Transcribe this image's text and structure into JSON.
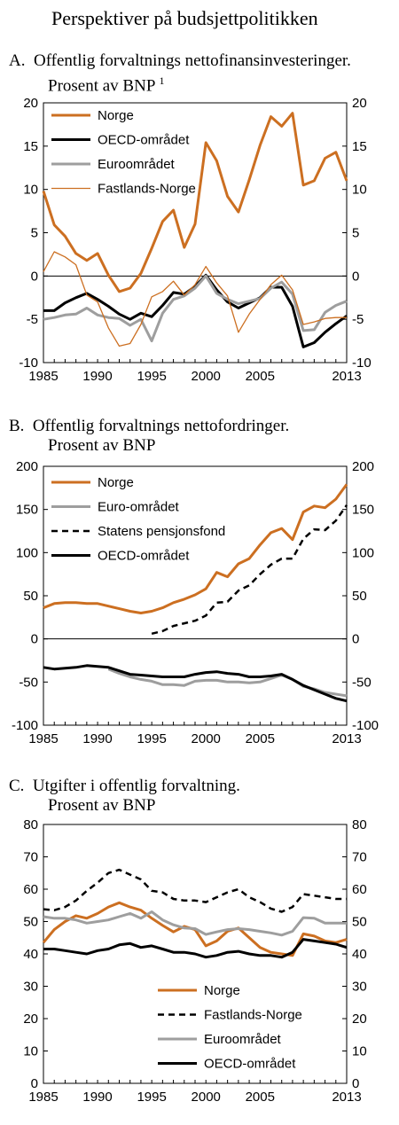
{
  "title": "Perspektiver på budsjettpolitikken",
  "colors": {
    "norge": "#cc6f21",
    "black": "#000000",
    "grey": "#9e9e9e"
  },
  "panel_titles": {
    "a_line1": "A. Offentlig forvaltnings nettofinansinvesteringer.",
    "a_line2": "Prosent av BNP",
    "a_sup": "1",
    "b_line1": "B. Offentlig forvaltnings nettofordringer.",
    "b_line2": "Prosent av BNP",
    "c_line1": "C. Utgifter i offentlig forvaltning.",
    "c_line2": "Prosent av BNP"
  },
  "chart_data": [
    {
      "type": "line",
      "xticks": [
        "1985",
        "1990",
        "1995",
        "2000",
        "2005",
        "2013"
      ],
      "ylim": [
        -10,
        20
      ],
      "yticks": [
        -10,
        -5,
        0,
        5,
        10,
        15,
        20
      ],
      "grid": false,
      "legend": "top-left",
      "series": [
        {
          "name": "Norge",
          "color": "#cc6f21",
          "width": 3,
          "dash": "",
          "x": [
            1985,
            1986,
            1987,
            1988,
            1989,
            1990,
            1991,
            1992,
            1993,
            1994,
            1995,
            1996,
            1997,
            1998,
            1999,
            2000,
            2001,
            2002,
            2003,
            2004,
            2005,
            2006,
            2007,
            2008,
            2009,
            2010,
            2011,
            2012,
            2013
          ],
          "values": [
            9.8,
            5.9,
            4.6,
            2.6,
            1.8,
            2.6,
            0.1,
            -1.8,
            -1.4,
            0.3,
            3.2,
            6.3,
            7.6,
            3.3,
            6.0,
            15.4,
            13.3,
            9.2,
            7.4,
            11.1,
            15.1,
            18.4,
            17.3,
            18.8,
            10.5,
            11.0,
            13.6,
            14.3,
            11.0
          ]
        },
        {
          "name": "OECD-området",
          "color": "#000000",
          "width": 3,
          "dash": "",
          "x": [
            1985,
            1986,
            1987,
            1988,
            1989,
            1990,
            1991,
            1992,
            1993,
            1994,
            1995,
            1996,
            1997,
            1998,
            1999,
            2000,
            2001,
            2002,
            2003,
            2004,
            2005,
            2006,
            2007,
            2008,
            2009,
            2010,
            2011,
            2012,
            2013
          ],
          "values": [
            -4.0,
            -4.0,
            -3.1,
            -2.5,
            -2.0,
            -2.7,
            -3.5,
            -4.4,
            -5.0,
            -4.3,
            -4.7,
            -3.4,
            -1.9,
            -2.1,
            -1.2,
            0.1,
            -1.6,
            -3.0,
            -3.7,
            -3.1,
            -2.5,
            -1.3,
            -1.3,
            -3.5,
            -8.2,
            -7.7,
            -6.5,
            -5.5,
            -4.6
          ]
        },
        {
          "name": "Euroområdet",
          "color": "#9e9e9e",
          "width": 3,
          "dash": "",
          "x": [
            1985,
            1986,
            1987,
            1988,
            1989,
            1990,
            1991,
            1992,
            1993,
            1994,
            1995,
            1996,
            1997,
            1998,
            1999,
            2000,
            2001,
            2002,
            2003,
            2004,
            2005,
            2006,
            2007,
            2008,
            2009,
            2010,
            2011,
            2012,
            2013
          ],
          "values": [
            -5.0,
            -4.8,
            -4.5,
            -4.4,
            -3.7,
            -4.5,
            -4.8,
            -4.9,
            -5.7,
            -5.0,
            -7.5,
            -4.3,
            -2.7,
            -2.3,
            -1.4,
            0.0,
            -2.0,
            -2.7,
            -3.2,
            -2.9,
            -2.6,
            -1.4,
            -0.7,
            -2.1,
            -6.3,
            -6.2,
            -4.2,
            -3.4,
            -2.9
          ]
        },
        {
          "name": "Fastlands-Norge",
          "color": "#cc6f21",
          "width": 1.3,
          "dash": "",
          "x": [
            1985,
            1986,
            1987,
            1988,
            1989,
            1990,
            1991,
            1992,
            1993,
            1994,
            1995,
            1996,
            1997,
            1998,
            1999,
            2000,
            2001,
            2002,
            2003,
            2004,
            2005,
            2006,
            2007,
            2008,
            2009,
            2010,
            2011,
            2012,
            2013
          ],
          "values": [
            0.5,
            2.8,
            2.2,
            1.3,
            -2.2,
            -3.0,
            -6.0,
            -8.1,
            -7.8,
            -5.6,
            -2.4,
            -1.8,
            -0.6,
            -2.2,
            -1.0,
            1.1,
            -0.8,
            -2.3,
            -6.5,
            -4.4,
            -2.7,
            -1.0,
            0.1,
            -1.6,
            -5.6,
            -5.3,
            -4.9,
            -4.8,
            -4.8
          ]
        }
      ]
    },
    {
      "type": "line",
      "xticks": [
        "1985",
        "1990",
        "1995",
        "2000",
        "2005",
        "2013"
      ],
      "ylim": [
        -100,
        200
      ],
      "yticks": [
        -100,
        -50,
        0,
        50,
        100,
        150,
        200
      ],
      "grid": false,
      "legend": "top-left",
      "series": [
        {
          "name": "Norge",
          "color": "#cc6f21",
          "width": 3,
          "dash": "",
          "x": [
            1985,
            1986,
            1987,
            1988,
            1989,
            1990,
            1991,
            1992,
            1993,
            1994,
            1995,
            1996,
            1997,
            1998,
            1999,
            2000,
            2001,
            2002,
            2003,
            2004,
            2005,
            2006,
            2007,
            2008,
            2009,
            2010,
            2011,
            2012,
            2013
          ],
          "values": [
            36,
            41,
            42,
            42,
            41,
            41,
            38,
            35,
            32,
            30,
            32,
            36,
            42,
            46,
            51,
            58,
            77,
            72,
            87,
            93,
            109,
            123,
            128,
            115,
            147,
            154,
            152,
            162,
            179
          ]
        },
        {
          "name": "Euro-området",
          "color": "#9e9e9e",
          "width": 3,
          "dash": "",
          "x": [
            1991,
            1992,
            1993,
            1994,
            1995,
            1996,
            1997,
            1998,
            1999,
            2000,
            2001,
            2002,
            2003,
            2004,
            2005,
            2006,
            2007,
            2008,
            2009,
            2010,
            2011,
            2012,
            2013
          ],
          "values": [
            -35,
            -40,
            -44,
            -47,
            -49,
            -53,
            -53,
            -54,
            -49,
            -48,
            -48,
            -50,
            -50,
            -51,
            -50,
            -46,
            -42,
            -47,
            -55,
            -58,
            -62,
            -64,
            -66
          ]
        },
        {
          "name": "Statens pensjonsfond",
          "color": "#000000",
          "width": 2.5,
          "dash": "7,5",
          "x": [
            1995,
            1996,
            1997,
            1998,
            1999,
            2000,
            2001,
            2002,
            2003,
            2004,
            2005,
            2006,
            2007,
            2008,
            2009,
            2010,
            2011,
            2012,
            2013
          ],
          "values": [
            6,
            9,
            15,
            18,
            21,
            27,
            42,
            43,
            56,
            62,
            75,
            86,
            93,
            93,
            116,
            127,
            126,
            137,
            155
          ]
        },
        {
          "name": "OECD-området",
          "color": "#000000",
          "width": 3,
          "dash": "",
          "x": [
            1985,
            1986,
            1987,
            1988,
            1989,
            1990,
            1991,
            1992,
            1993,
            1994,
            1995,
            1996,
            1997,
            1998,
            1999,
            2000,
            2001,
            2002,
            2003,
            2004,
            2005,
            2006,
            2007,
            2008,
            2009,
            2010,
            2011,
            2012,
            2013
          ],
          "values": [
            -33,
            -35,
            -34,
            -33,
            -31,
            -32,
            -33,
            -37,
            -41,
            -42,
            -43,
            -44,
            -44,
            -44,
            -41,
            -39,
            -38,
            -40,
            -41,
            -44,
            -44,
            -43,
            -41,
            -47,
            -54,
            -59,
            -64,
            -69,
            -72
          ]
        }
      ]
    },
    {
      "type": "line",
      "xticks": [
        "1985",
        "1990",
        "1995",
        "2000",
        "2005",
        "2013"
      ],
      "ylim": [
        0,
        80
      ],
      "yticks": [
        0,
        10,
        20,
        30,
        40,
        50,
        60,
        70,
        80
      ],
      "grid": false,
      "legend": "bottom-right",
      "series": [
        {
          "name": "Norge",
          "color": "#cc6f21",
          "width": 3,
          "dash": "",
          "x": [
            1985,
            1986,
            1987,
            1988,
            1989,
            1990,
            1991,
            1992,
            1993,
            1994,
            1995,
            1996,
            1997,
            1998,
            1999,
            2000,
            2001,
            2002,
            2003,
            2004,
            2005,
            2006,
            2007,
            2008,
            2009,
            2010,
            2011,
            2012,
            2013
          ],
          "values": [
            43.5,
            47.5,
            50.0,
            51.8,
            51.0,
            52.5,
            54.5,
            55.8,
            54.5,
            53.5,
            51.0,
            48.8,
            46.8,
            48.5,
            47.5,
            42.5,
            44.0,
            47.0,
            48.0,
            45.0,
            42.0,
            40.5,
            40.0,
            39.5,
            46.2,
            45.5,
            44.0,
            43.5,
            44.5
          ]
        },
        {
          "name": "Fastlands-Norge",
          "color": "#000000",
          "width": 2.5,
          "dash": "7,5",
          "x": [
            1985,
            1986,
            1987,
            1988,
            1989,
            1990,
            1991,
            1992,
            1993,
            1994,
            1995,
            1996,
            1997,
            1998,
            1999,
            2000,
            2001,
            2002,
            2003,
            2004,
            2005,
            2006,
            2007,
            2008,
            2009,
            2010,
            2011,
            2012,
            2013
          ],
          "values": [
            53.8,
            53.5,
            54.5,
            56.5,
            59.5,
            62.0,
            65.0,
            66.0,
            64.5,
            63.0,
            59.5,
            59.0,
            57.0,
            56.5,
            56.5,
            56.0,
            57.5,
            59.0,
            60.0,
            57.5,
            56.0,
            54.0,
            53.0,
            54.5,
            58.5,
            58.0,
            57.5,
            57.0,
            57.0
          ]
        },
        {
          "name": "Euroområdet",
          "color": "#9e9e9e",
          "width": 3,
          "dash": "",
          "x": [
            1985,
            1986,
            1987,
            1988,
            1989,
            1990,
            1991,
            1992,
            1993,
            1994,
            1995,
            1996,
            1997,
            1998,
            1999,
            2000,
            2001,
            2002,
            2003,
            2004,
            2005,
            2006,
            2007,
            2008,
            2009,
            2010,
            2011,
            2012,
            2013
          ],
          "values": [
            51.5,
            51.0,
            51.0,
            50.5,
            49.5,
            50.0,
            50.5,
            51.5,
            52.5,
            51.0,
            53.0,
            50.5,
            49.0,
            48.0,
            47.8,
            46.0,
            46.8,
            47.5,
            47.8,
            47.5,
            47.0,
            46.5,
            45.8,
            47.0,
            51.2,
            51.0,
            49.5,
            49.5,
            49.5
          ]
        },
        {
          "name": "OECD-området",
          "color": "#000000",
          "width": 3,
          "dash": "",
          "x": [
            1985,
            1986,
            1987,
            1988,
            1989,
            1990,
            1991,
            1992,
            1993,
            1994,
            1995,
            1996,
            1997,
            1998,
            1999,
            2000,
            2001,
            2002,
            2003,
            2004,
            2005,
            2006,
            2007,
            2008,
            2009,
            2010,
            2011,
            2012,
            2013
          ],
          "values": [
            41.5,
            41.5,
            41.0,
            40.5,
            40.0,
            41.0,
            41.5,
            42.8,
            43.2,
            42.0,
            42.5,
            41.5,
            40.5,
            40.5,
            40.0,
            39.0,
            39.5,
            40.5,
            40.8,
            40.0,
            39.5,
            39.5,
            39.0,
            40.5,
            44.5,
            44.0,
            43.5,
            43.0,
            42.0
          ]
        }
      ]
    }
  ]
}
